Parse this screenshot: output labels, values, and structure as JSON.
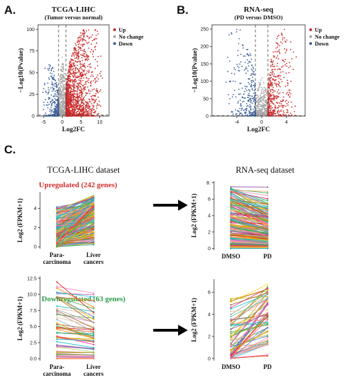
{
  "figure": {
    "panel_labels": [
      "A.",
      "B.",
      "C."
    ],
    "arrow_icon": "right-arrow-icon"
  },
  "chart_data": [
    {
      "type": "scatter",
      "panel": "A.",
      "title": "TCGA-LIHC",
      "subtitle": "(Tumor versus normal)",
      "xlabel": "Log2FC",
      "ylabel": "−Log10(Pvalue)",
      "xlim": [
        -6.5,
        12.5
      ],
      "ylim": [
        0,
        105
      ],
      "xticks": [
        -5,
        0,
        5,
        10
      ],
      "yticks": [
        0,
        25,
        50,
        75,
        100
      ],
      "threshold_lines": {
        "x": [
          -1,
          1
        ],
        "y": 1.3
      },
      "legend_position": "right",
      "series": [
        {
          "name": "Up",
          "color": "#cc2a2a",
          "n": 1500,
          "x_range": [
            1,
            11
          ],
          "y_max": 100
        },
        {
          "name": "No change",
          "color": "#a6a6a6",
          "n": 700,
          "x_range": [
            -1,
            1
          ],
          "y_max": 70
        },
        {
          "name": "Down",
          "color": "#3a5f9c",
          "n": 280,
          "x_range": [
            -5.5,
            -1
          ],
          "y_max": 60
        }
      ]
    },
    {
      "type": "scatter",
      "panel": "B.",
      "title": "RNA-seq",
      "subtitle": "(PD versus DMSO)",
      "xlabel": "Log2FC",
      "ylabel": "−Log10(Pvalue)",
      "xlim": [
        -8,
        7
      ],
      "ylim": [
        0,
        262
      ],
      "xticks": [
        -4,
        0,
        4
      ],
      "yticks": [
        0,
        50,
        100,
        150,
        200,
        250
      ],
      "threshold_lines": {
        "x": [
          -1,
          1
        ],
        "y": 1.3
      },
      "legend_position": "right",
      "series": [
        {
          "name": "Up",
          "color": "#cc2a2a",
          "n": 450,
          "x_range": [
            1,
            6
          ],
          "y_max": 250
        },
        {
          "name": "No change",
          "color": "#a6a6a6",
          "n": 500,
          "x_range": [
            -1,
            1
          ],
          "y_max": 120
        },
        {
          "name": "Down",
          "color": "#3a5f9c",
          "n": 300,
          "x_range": [
            -6,
            -1
          ],
          "y_max": 250
        }
      ]
    },
    {
      "type": "line",
      "panel": "C.",
      "title": "TCGA-LIHC dataset",
      "subtitle": "Upregulated (242 genes)",
      "subtitle_color": "#d32f2f",
      "ylabel": "Log2 (FPKM+1)",
      "categories": [
        "Para-\ncarcinoma",
        "Liver\ncancers"
      ],
      "ylim": [
        -0.2,
        5.7
      ],
      "yticks": [
        0,
        2,
        4
      ],
      "n_lines": 242,
      "left_range": [
        0,
        4.2
      ],
      "right_range": [
        0,
        5.6
      ]
    },
    {
      "type": "line",
      "panel": "C.",
      "title": "RNA-seq dataset",
      "ylabel": "Log2 (FPKM+1)",
      "categories": [
        "DMSO",
        "PD"
      ],
      "ylim": [
        -0.2,
        8.2
      ],
      "yticks": [
        0,
        2,
        4,
        6,
        8
      ],
      "ytick_labels": [
        "0",
        "2",
        "4",
        "6",
        "8."
      ],
      "n_lines": 242,
      "left_range": [
        0,
        7.5
      ],
      "right_range": [
        0,
        6.0
      ]
    },
    {
      "type": "line",
      "panel": "C.",
      "subtitle": "Downregulated (63 genes)",
      "subtitle_color": "#2e9b4a",
      "ylabel": "Log2 (FPKM+1)",
      "categories": [
        "Para-\ncarcinoma",
        "Liver\ncancers"
      ],
      "ylim": [
        -0.3,
        12.8
      ],
      "yticks": [
        0,
        2.5,
        5,
        7.5,
        10,
        12.5
      ],
      "ytick_labels": [
        "0.0",
        "2.5",
        "5.0",
        "7.5",
        "10.0",
        "12.5"
      ],
      "n_lines": 63,
      "left_range": [
        0,
        12.0
      ],
      "right_range": [
        0,
        11.5
      ]
    },
    {
      "type": "line",
      "panel": "C.",
      "ylabel": "Log2 (FPKM+1)",
      "categories": [
        "DMSO",
        "PD"
      ],
      "ylim": [
        -0.2,
        7.2
      ],
      "yticks": [
        0,
        2,
        4,
        6
      ],
      "n_lines": 63,
      "left_range": [
        0,
        5.8
      ],
      "right_range": [
        0,
        6.9
      ]
    }
  ]
}
